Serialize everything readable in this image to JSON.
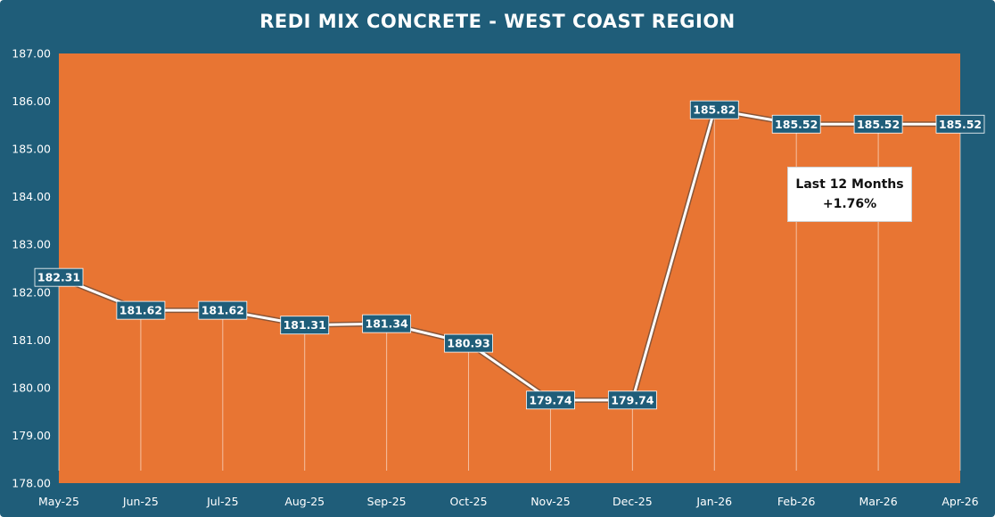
{
  "chart_data": {
    "type": "line",
    "title": "REDI MIX CONCRETE - WEST COAST REGION",
    "xlabel": "",
    "ylabel": "",
    "categories": [
      "May-25",
      "Jun-25",
      "Jul-25",
      "Aug-25",
      "Sep-25",
      "Oct-25",
      "Nov-25",
      "Dec-25",
      "Jan-26",
      "Feb-26",
      "Mar-26",
      "Apr-26"
    ],
    "series": [
      {
        "values": [
          182.31,
          181.62,
          181.62,
          181.31,
          181.34,
          180.93,
          179.74,
          179.74,
          185.82,
          185.52,
          185.52,
          185.52
        ],
        "data_labels": [
          "182.31",
          "181.62",
          "181.62",
          "181.31",
          "181.34",
          "180.93",
          "179.74",
          "179.74",
          "185.82",
          "185.52",
          "185.52",
          "185.52"
        ]
      }
    ],
    "ylim": [
      178,
      187
    ],
    "y_ticks": [
      "178.00",
      "179.00",
      "180.00",
      "181.00",
      "182.00",
      "183.00",
      "184.00",
      "185.00",
      "186.00",
      "187.00"
    ],
    "grid": false,
    "drop_lines": true,
    "annotation": {
      "line1": "Last 12 Months",
      "line2": "+1.76%"
    },
    "colors": {
      "background": "#1f5d79",
      "plot_area": "#e87533",
      "line": "#ffffff",
      "label_box": "#1f5d79",
      "text": "#ffffff"
    }
  }
}
